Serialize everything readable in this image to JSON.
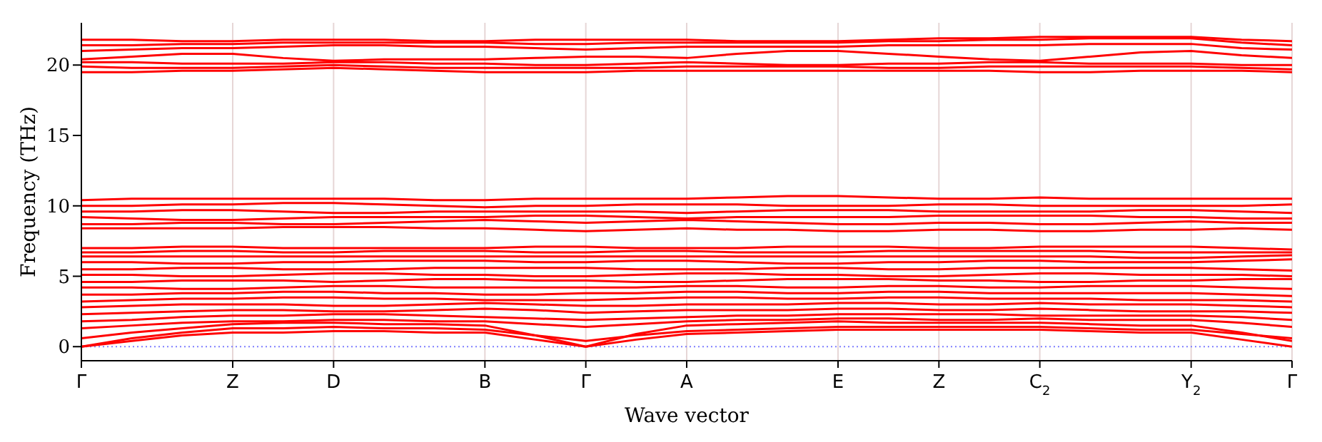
{
  "chart_data": {
    "type": "line",
    "xlabel": "Wave vector",
    "ylabel": "Frequency (THz)",
    "ylim": [
      -1,
      23
    ],
    "categories": [
      "Γ",
      null,
      null,
      "Z",
      null,
      "D",
      null,
      null,
      "B",
      null,
      "Γ",
      null,
      "A",
      null,
      null,
      "E",
      null,
      "Z",
      null,
      "C$_{2}$",
      null,
      null,
      "Y$_{2}$",
      null,
      "Γ"
    ],
    "yticks": [
      0,
      5,
      10,
      15,
      20
    ],
    "grid": "x",
    "marker": "none",
    "line_style": "solid",
    "ref_lines": [
      {
        "axis": "y",
        "value": 0,
        "color": "#7f7fff",
        "line_style": "dotted"
      }
    ],
    "series": [
      {
        "color": "#ff0000",
        "values": [
          0,
          0.4,
          0.8,
          1.0,
          1.0,
          1.1,
          1.1,
          1.0,
          1.0,
          0.5,
          0,
          0.5,
          0.9,
          1.0,
          1.1,
          1.2,
          1.2,
          1.2,
          1.2,
          1.2,
          1.1,
          1.0,
          1.0,
          0.5,
          0
        ]
      },
      {
        "color": "#ff0000",
        "values": [
          0,
          0.6,
          1.0,
          1.3,
          1.3,
          1.4,
          1.3,
          1.3,
          1.2,
          0.8,
          0.4,
          0.8,
          1.1,
          1.2,
          1.3,
          1.4,
          1.4,
          1.4,
          1.4,
          1.4,
          1.3,
          1.2,
          1.2,
          0.9,
          0.6
        ]
      },
      {
        "color": "#ff0000",
        "values": [
          0.6,
          1.0,
          1.3,
          1.6,
          1.7,
          1.7,
          1.6,
          1.6,
          1.5,
          0.8,
          0,
          0.9,
          1.5,
          1.6,
          1.7,
          1.8,
          1.7,
          1.7,
          1.7,
          1.7,
          1.6,
          1.5,
          1.5,
          1.0,
          0.4
        ]
      },
      {
        "color": "#ff0000",
        "values": [
          1.3,
          1.5,
          1.7,
          1.8,
          1.8,
          1.9,
          1.9,
          1.8,
          1.8,
          1.6,
          1.4,
          1.6,
          1.8,
          1.9,
          1.9,
          2.0,
          2.0,
          1.9,
          1.9,
          2.0,
          1.9,
          1.9,
          1.9,
          1.7,
          1.4
        ]
      },
      {
        "color": "#ff0000",
        "values": [
          1.8,
          1.9,
          2.1,
          2.2,
          2.2,
          2.3,
          2.3,
          2.2,
          2.1,
          2.0,
          1.9,
          2.0,
          2.1,
          2.2,
          2.2,
          2.3,
          2.3,
          2.3,
          2.3,
          2.2,
          2.2,
          2.2,
          2.2,
          2.1,
          1.9
        ]
      },
      {
        "color": "#ff0000",
        "values": [
          2.3,
          2.4,
          2.5,
          2.6,
          2.6,
          2.5,
          2.5,
          2.6,
          2.7,
          2.6,
          2.4,
          2.5,
          2.6,
          2.6,
          2.6,
          2.7,
          2.7,
          2.6,
          2.6,
          2.7,
          2.6,
          2.5,
          2.5,
          2.5,
          2.4
        ]
      },
      {
        "color": "#ff0000",
        "values": [
          2.8,
          2.9,
          3.0,
          3.0,
          3.0,
          2.9,
          2.9,
          3.0,
          3.1,
          3.0,
          2.9,
          2.9,
          3.0,
          3.0,
          3.0,
          3.1,
          3.1,
          3.0,
          3.0,
          3.1,
          3.0,
          3.0,
          3.0,
          2.9,
          2.8
        ]
      },
      {
        "color": "#ff0000",
        "values": [
          3.2,
          3.3,
          3.4,
          3.4,
          3.5,
          3.5,
          3.4,
          3.4,
          3.3,
          3.3,
          3.3,
          3.4,
          3.5,
          3.5,
          3.4,
          3.4,
          3.5,
          3.5,
          3.4,
          3.4,
          3.4,
          3.3,
          3.3,
          3.3,
          3.2
        ]
      },
      {
        "color": "#ff0000",
        "values": [
          3.7,
          3.7,
          3.8,
          3.8,
          3.9,
          3.9,
          3.8,
          3.8,
          3.7,
          3.7,
          3.8,
          3.8,
          3.9,
          3.9,
          3.8,
          3.8,
          3.9,
          3.9,
          3.8,
          3.8,
          3.8,
          3.8,
          3.8,
          3.7,
          3.6
        ]
      },
      {
        "color": "#ff0000",
        "values": [
          4.2,
          4.2,
          4.1,
          4.1,
          4.2,
          4.3,
          4.3,
          4.2,
          4.2,
          4.2,
          4.2,
          4.2,
          4.3,
          4.3,
          4.2,
          4.2,
          4.3,
          4.3,
          4.2,
          4.2,
          4.3,
          4.3,
          4.3,
          4.2,
          4.1
        ]
      },
      {
        "color": "#ff0000",
        "values": [
          4.6,
          4.6,
          4.7,
          4.7,
          4.7,
          4.6,
          4.7,
          4.8,
          4.8,
          4.7,
          4.7,
          4.6,
          4.6,
          4.7,
          4.8,
          4.8,
          4.8,
          4.7,
          4.7,
          4.6,
          4.6,
          4.7,
          4.7,
          4.8,
          4.8
        ]
      },
      {
        "color": "#ff0000",
        "values": [
          5.1,
          5.1,
          5.0,
          5.0,
          5.1,
          5.2,
          5.2,
          5.1,
          5.1,
          5.0,
          5.0,
          5.1,
          5.2,
          5.2,
          5.1,
          5.1,
          5.0,
          5.0,
          5.1,
          5.2,
          5.2,
          5.1,
          5.1,
          5.1,
          5.0
        ]
      },
      {
        "color": "#ff0000",
        "values": [
          5.5,
          5.5,
          5.6,
          5.6,
          5.5,
          5.5,
          5.5,
          5.6,
          5.6,
          5.6,
          5.6,
          5.5,
          5.5,
          5.5,
          5.6,
          5.6,
          5.5,
          5.5,
          5.6,
          5.6,
          5.6,
          5.6,
          5.6,
          5.5,
          5.4
        ]
      },
      {
        "color": "#ff0000",
        "values": [
          6.0,
          6.0,
          5.9,
          5.9,
          6.0,
          6.0,
          6.1,
          6.1,
          6.1,
          6.0,
          6.0,
          6.1,
          6.1,
          6.0,
          5.9,
          5.9,
          6.0,
          6.0,
          6.1,
          6.1,
          6.0,
          6.0,
          6.0,
          6.1,
          6.2
        ]
      },
      {
        "color": "#ff0000",
        "values": [
          6.4,
          6.4,
          6.4,
          6.4,
          6.4,
          6.4,
          6.4,
          6.4,
          6.4,
          6.4,
          6.4,
          6.4,
          6.4,
          6.4,
          6.4,
          6.4,
          6.4,
          6.4,
          6.4,
          6.4,
          6.4,
          6.3,
          6.3,
          6.4,
          6.5
        ]
      },
      {
        "color": "#ff0000",
        "values": [
          6.7,
          6.7,
          6.8,
          6.8,
          6.7,
          6.7,
          6.8,
          6.8,
          6.8,
          6.7,
          6.7,
          6.8,
          6.8,
          6.7,
          6.7,
          6.7,
          6.8,
          6.8,
          6.8,
          6.8,
          6.8,
          6.7,
          6.7,
          6.7,
          6.7
        ]
      },
      {
        "color": "#ff0000",
        "values": [
          7.0,
          7.0,
          7.1,
          7.1,
          7.0,
          7.0,
          7.0,
          7.0,
          7.0,
          7.1,
          7.1,
          7.0,
          7.0,
          7.0,
          7.1,
          7.1,
          7.1,
          7.0,
          7.0,
          7.1,
          7.1,
          7.1,
          7.1,
          7.0,
          6.9
        ]
      },
      {
        "color": "#ff0000",
        "values": [
          8.4,
          8.4,
          8.4,
          8.4,
          8.5,
          8.5,
          8.5,
          8.4,
          8.4,
          8.3,
          8.2,
          8.3,
          8.4,
          8.3,
          8.3,
          8.2,
          8.2,
          8.3,
          8.3,
          8.2,
          8.2,
          8.3,
          8.3,
          8.4,
          8.3
        ]
      },
      {
        "color": "#ff0000",
        "values": [
          8.7,
          8.7,
          8.8,
          8.8,
          8.7,
          8.7,
          8.8,
          8.9,
          9.0,
          8.9,
          8.8,
          8.9,
          9.0,
          8.9,
          8.8,
          8.7,
          8.7,
          8.8,
          8.8,
          8.7,
          8.7,
          8.8,
          8.9,
          8.8,
          8.8
        ]
      },
      {
        "color": "#ff0000",
        "values": [
          9.2,
          9.1,
          9.0,
          9.0,
          9.1,
          9.2,
          9.2,
          9.2,
          9.2,
          9.3,
          9.3,
          9.2,
          9.1,
          9.2,
          9.2,
          9.2,
          9.2,
          9.3,
          9.3,
          9.3,
          9.3,
          9.2,
          9.2,
          9.1,
          9.1
        ]
      },
      {
        "color": "#ff0000",
        "values": [
          9.6,
          9.6,
          9.7,
          9.7,
          9.6,
          9.5,
          9.5,
          9.6,
          9.6,
          9.6,
          9.6,
          9.6,
          9.5,
          9.6,
          9.7,
          9.7,
          9.7,
          9.6,
          9.6,
          9.6,
          9.6,
          9.7,
          9.7,
          9.6,
          9.5
        ]
      },
      {
        "color": "#ff0000",
        "values": [
          10.0,
          10.0,
          10.1,
          10.1,
          10.2,
          10.2,
          10.1,
          10.0,
          9.9,
          10.0,
          10.0,
          10.1,
          10.1,
          10.1,
          10.0,
          10.0,
          10.0,
          10.1,
          10.1,
          10.0,
          10.0,
          10.0,
          10.0,
          10.0,
          10.1
        ]
      },
      {
        "color": "#ff0000",
        "values": [
          10.4,
          10.5,
          10.5,
          10.5,
          10.5,
          10.5,
          10.5,
          10.4,
          10.4,
          10.5,
          10.5,
          10.5,
          10.5,
          10.6,
          10.7,
          10.7,
          10.6,
          10.5,
          10.5,
          10.6,
          10.5,
          10.5,
          10.5,
          10.5,
          10.5
        ]
      },
      {
        "color": "#ff0000",
        "values": [
          19.5,
          19.5,
          19.6,
          19.6,
          19.7,
          19.8,
          19.7,
          19.6,
          19.5,
          19.5,
          19.5,
          19.6,
          19.6,
          19.6,
          19.6,
          19.6,
          19.6,
          19.6,
          19.6,
          19.5,
          19.5,
          19.6,
          19.6,
          19.6,
          19.5
        ]
      },
      {
        "color": "#ff0000",
        "values": [
          19.9,
          19.8,
          19.8,
          19.8,
          19.9,
          20.0,
          19.9,
          19.8,
          19.8,
          19.8,
          19.8,
          19.8,
          19.9,
          19.9,
          19.9,
          19.9,
          19.8,
          19.8,
          19.9,
          19.9,
          19.9,
          19.9,
          19.9,
          19.8,
          19.7
        ]
      },
      {
        "color": "#ff0000",
        "values": [
          20.2,
          20.2,
          20.1,
          20.1,
          20.1,
          20.2,
          20.2,
          20.1,
          20.1,
          20.0,
          20.0,
          20.1,
          20.2,
          20.1,
          20.0,
          20.0,
          20.1,
          20.1,
          20.2,
          20.2,
          20.1,
          20.1,
          20.1,
          20.0,
          20.0
        ]
      },
      {
        "color": "#ff0000",
        "values": [
          20.4,
          20.6,
          20.8,
          20.8,
          20.5,
          20.3,
          20.4,
          20.4,
          20.4,
          20.5,
          20.6,
          20.6,
          20.5,
          20.8,
          21.0,
          21.0,
          20.8,
          20.6,
          20.4,
          20.3,
          20.6,
          20.9,
          21.0,
          20.7,
          20.5
        ]
      },
      {
        "color": "#ff0000",
        "values": [
          21.0,
          21.1,
          21.2,
          21.2,
          21.3,
          21.4,
          21.4,
          21.3,
          21.3,
          21.2,
          21.1,
          21.2,
          21.3,
          21.3,
          21.3,
          21.3,
          21.4,
          21.4,
          21.4,
          21.4,
          21.5,
          21.5,
          21.5,
          21.2,
          21.1
        ]
      },
      {
        "color": "#ff0000",
        "values": [
          21.4,
          21.4,
          21.5,
          21.5,
          21.6,
          21.6,
          21.6,
          21.6,
          21.6,
          21.5,
          21.5,
          21.6,
          21.6,
          21.6,
          21.6,
          21.6,
          21.7,
          21.7,
          21.8,
          21.8,
          21.9,
          21.9,
          21.9,
          21.6,
          21.4
        ]
      },
      {
        "color": "#ff0000",
        "values": [
          21.8,
          21.8,
          21.7,
          21.7,
          21.8,
          21.8,
          21.8,
          21.7,
          21.7,
          21.8,
          21.8,
          21.8,
          21.8,
          21.7,
          21.7,
          21.7,
          21.8,
          21.9,
          21.9,
          22.0,
          22.0,
          22.0,
          22.0,
          21.8,
          21.7
        ]
      }
    ]
  }
}
